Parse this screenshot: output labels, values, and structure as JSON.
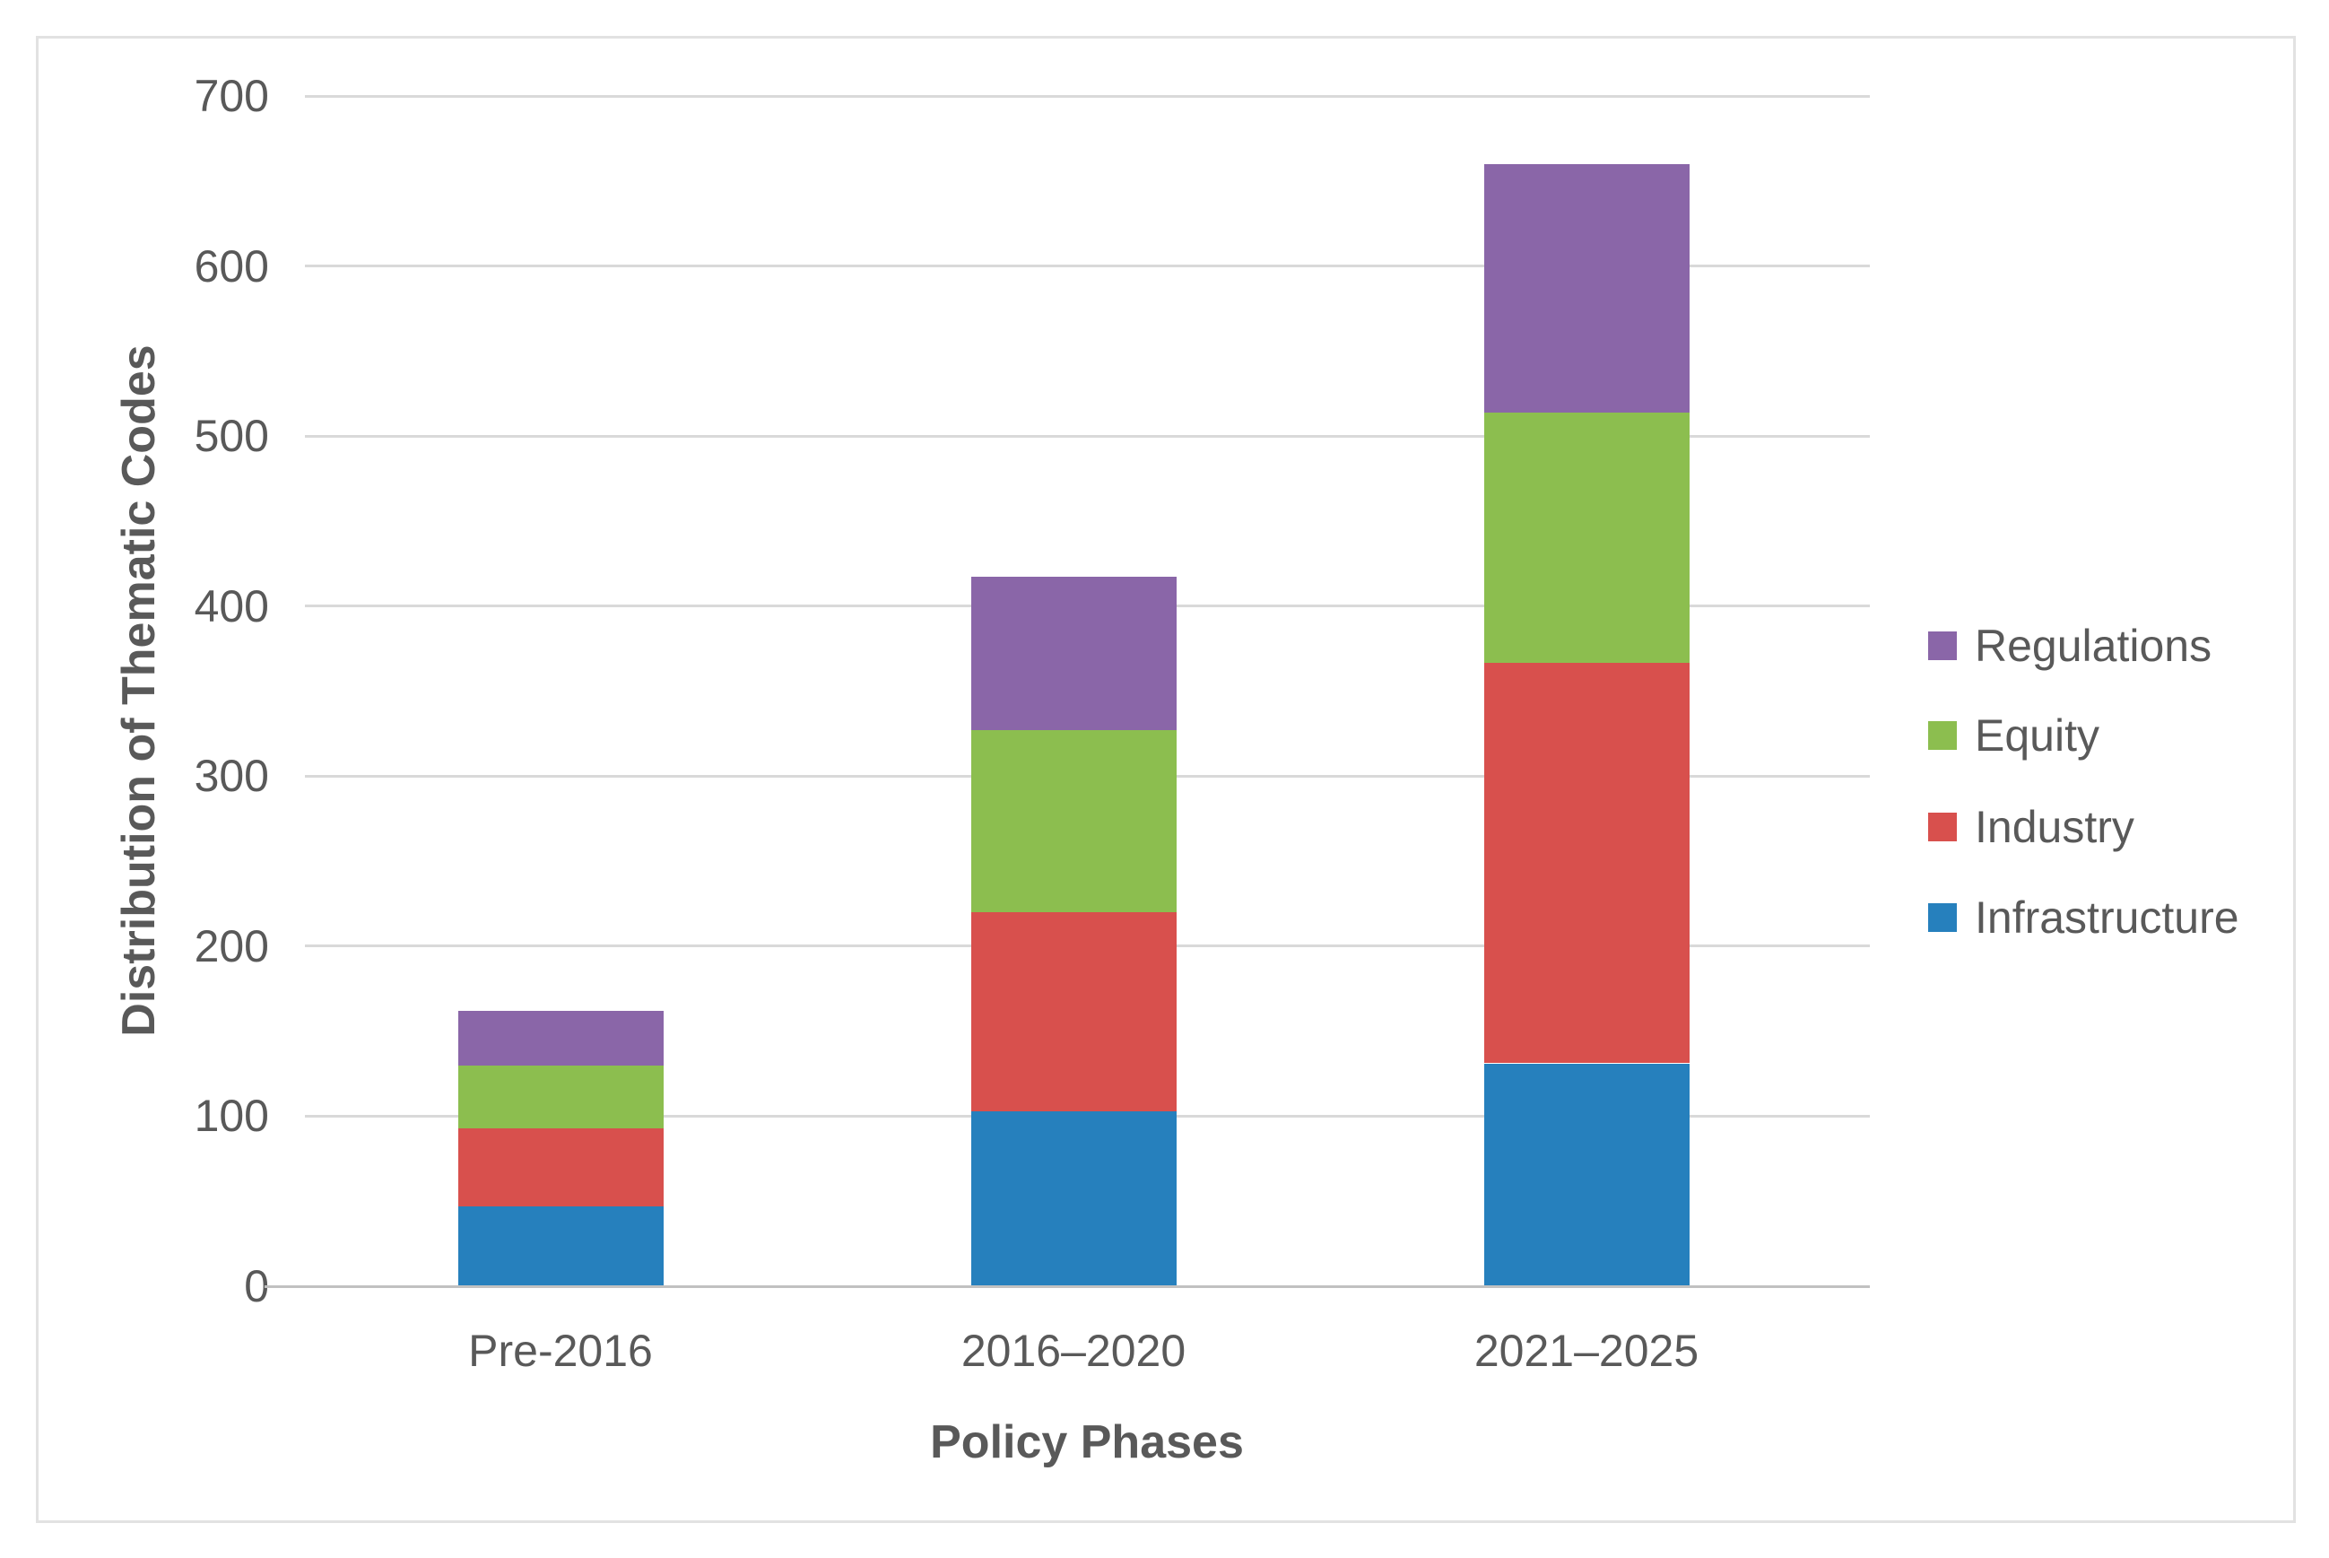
{
  "figure": {
    "background_color": "#FFFFFF",
    "frame_border_color": "#E2E2E2"
  },
  "chart_data": {
    "type": "bar",
    "stacked": true,
    "title": "",
    "xlabel": "Policy Phases",
    "ylabel": "Distribution of Thematic Codes",
    "categories": [
      "Pre-2016",
      "2016–2020",
      "2021–2025"
    ],
    "series": [
      {
        "name": "Infrastructure",
        "color": "#2680BD",
        "values": [
          47,
          103,
          131
        ]
      },
      {
        "name": "Industry",
        "color": "#D8504D",
        "values": [
          46,
          117,
          236
        ]
      },
      {
        "name": "Equity",
        "color": "#8CBE4F",
        "values": [
          37,
          107,
          147
        ]
      },
      {
        "name": "Regulations",
        "color": "#8A66A8",
        "values": [
          32,
          90,
          146
        ]
      }
    ],
    "stack_order_bottom_to_top": [
      "Infrastructure",
      "Industry",
      "Equity",
      "Regulations"
    ],
    "legend_order_top_to_bottom": [
      "Regulations",
      "Equity",
      "Industry",
      "Infrastructure"
    ],
    "legend_position": "right",
    "ylim": [
      0,
      700
    ],
    "yticks": [
      0,
      100,
      200,
      300,
      400,
      500,
      600,
      700
    ],
    "grid": "horizontal",
    "gridline_color": "#D9D9D9",
    "zero_line_color": "#C1C1C1",
    "axis_text_color": "#595959"
  }
}
